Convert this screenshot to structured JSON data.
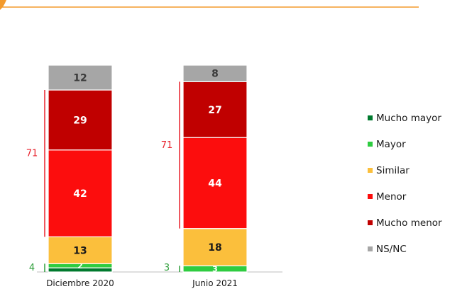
{
  "chart_data": {
    "type": "stacked-bar",
    "categories": [
      "Diciembre 2020",
      "Junio 2021"
    ],
    "series": [
      {
        "name": "Mucho mayor",
        "color": "#007a2e",
        "values": [
          2,
          0
        ],
        "labels": [
          "",
          ""
        ]
      },
      {
        "name": "Mayor",
        "color": "#2ecc40",
        "values": [
          2,
          3
        ],
        "labels": [
          "2",
          "3"
        ]
      },
      {
        "name": "Similar",
        "color": "#fbbf3c",
        "values": [
          13,
          18
        ],
        "labels": [
          "13",
          "18"
        ]
      },
      {
        "name": "Menor",
        "color": "#fc0d0d",
        "values": [
          42,
          44
        ],
        "labels": [
          "42",
          "44"
        ]
      },
      {
        "name": "Mucho menor",
        "color": "#c00000",
        "values": [
          29,
          27
        ],
        "labels": [
          "29",
          "27"
        ]
      },
      {
        "name": "NS/NC",
        "color": "#a6a6a6",
        "values": [
          12,
          8
        ],
        "labels": [
          "12",
          "8"
        ]
      }
    ],
    "brackets": [
      {
        "category": "Diciembre 2020",
        "label": "71",
        "from": "Menor",
        "to": "Mucho menor",
        "color": "#e8212b"
      },
      {
        "category": "Junio 2021",
        "label": "71",
        "from": "Menor",
        "to": "Mucho menor",
        "color": "#e8212b"
      },
      {
        "category": "Diciembre 2020",
        "label": "4",
        "from": "Mucho mayor",
        "to": "Mayor",
        "color": "#2e9e3a"
      },
      {
        "category": "Junio 2021",
        "label": "3",
        "from": "Mucho mayor",
        "to": "Mayor",
        "color": "#2e9e3a"
      }
    ],
    "title": "",
    "xlabel": "",
    "ylabel": "",
    "legend_position": "right"
  },
  "theme": {
    "accent": "#f39a2c",
    "axis": "#bfbfbf"
  }
}
